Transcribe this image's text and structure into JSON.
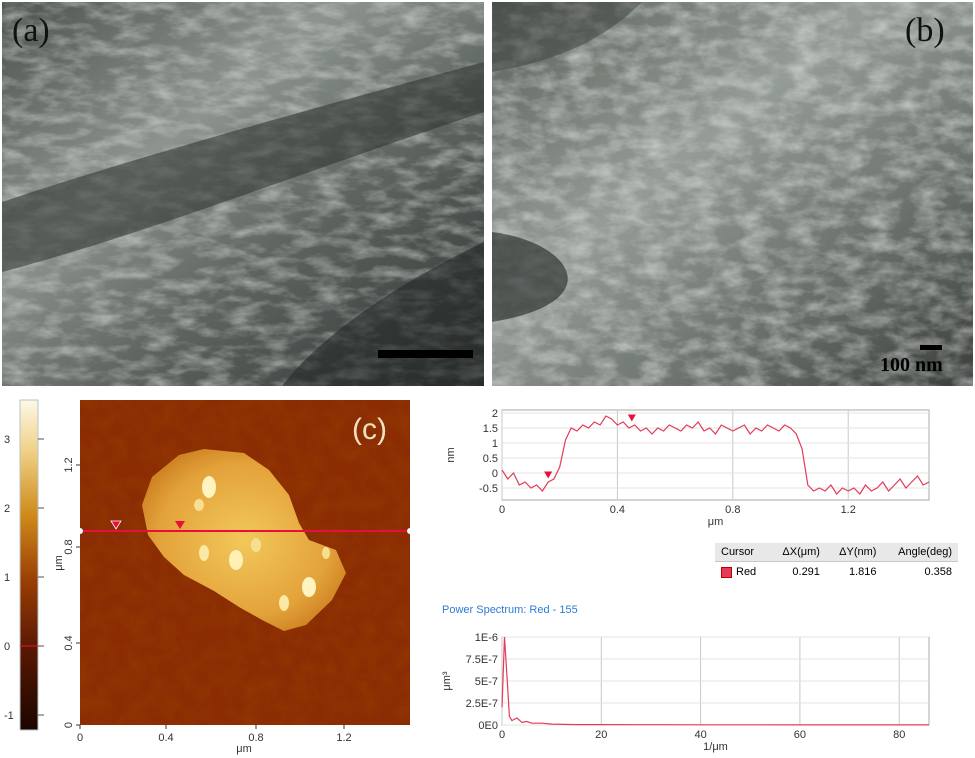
{
  "figure": {
    "panel_a_label": "(a)",
    "panel_b_label": "(b)",
    "panel_c_label": "(c)",
    "scale_bar_label": "100 nm"
  },
  "afm_image": {
    "colorbar_ticks": [
      "3",
      "2",
      "1",
      "0",
      "-1"
    ],
    "y_ticks": [
      "1.2",
      "0.8",
      "0.4",
      "0"
    ],
    "x_ticks": [
      "0",
      "0.4",
      "0.8",
      "1.2"
    ],
    "ylabel": "μm",
    "xlabel": "μm",
    "colors": {
      "low": "#3a0a02",
      "mid": "#8b2c03",
      "high": "#f2dc8a",
      "cursor_line": "#e8103a"
    }
  },
  "chart_data": [
    {
      "type": "line",
      "title": "",
      "xlabel": "μm",
      "ylabel": "nm",
      "xlim": [
        0,
        1.48
      ],
      "ylim": [
        -0.9,
        2.1
      ],
      "x_ticks": [
        "0",
        "0.4",
        "0.8",
        "1.2"
      ],
      "y_ticks": [
        "2",
        "1.5",
        "1",
        "0.5",
        "0",
        "-0.5"
      ],
      "series": [
        {
          "color": "#e23c5a",
          "x": [
            0.0,
            0.02,
            0.04,
            0.06,
            0.08,
            0.1,
            0.12,
            0.14,
            0.16,
            0.18,
            0.2,
            0.22,
            0.24,
            0.26,
            0.28,
            0.3,
            0.32,
            0.34,
            0.36,
            0.38,
            0.4,
            0.42,
            0.44,
            0.46,
            0.48,
            0.5,
            0.52,
            0.54,
            0.56,
            0.58,
            0.6,
            0.62,
            0.64,
            0.66,
            0.68,
            0.7,
            0.72,
            0.74,
            0.76,
            0.78,
            0.8,
            0.82,
            0.84,
            0.86,
            0.88,
            0.9,
            0.92,
            0.94,
            0.96,
            0.98,
            1.0,
            1.02,
            1.04,
            1.06,
            1.08,
            1.1,
            1.12,
            1.14,
            1.16,
            1.18,
            1.2,
            1.22,
            1.24,
            1.26,
            1.28,
            1.3,
            1.32,
            1.34,
            1.36,
            1.38,
            1.4,
            1.42,
            1.44,
            1.46,
            1.48
          ],
          "y": [
            0.1,
            -0.2,
            0.0,
            -0.4,
            -0.3,
            -0.5,
            -0.4,
            -0.6,
            -0.3,
            -0.2,
            0.2,
            1.1,
            1.5,
            1.4,
            1.6,
            1.5,
            1.7,
            1.6,
            1.9,
            1.8,
            1.6,
            1.7,
            1.5,
            1.6,
            1.4,
            1.5,
            1.3,
            1.5,
            1.4,
            1.6,
            1.5,
            1.4,
            1.6,
            1.5,
            1.7,
            1.4,
            1.5,
            1.3,
            1.6,
            1.5,
            1.4,
            1.5,
            1.6,
            1.3,
            1.5,
            1.4,
            1.6,
            1.5,
            1.4,
            1.6,
            1.5,
            1.3,
            0.8,
            -0.4,
            -0.6,
            -0.5,
            -0.6,
            -0.4,
            -0.7,
            -0.5,
            -0.6,
            -0.5,
            -0.7,
            -0.4,
            -0.6,
            -0.5,
            -0.3,
            -0.6,
            -0.4,
            -0.2,
            -0.5,
            -0.3,
            -0.1,
            -0.4,
            -0.3
          ]
        }
      ],
      "markers": [
        {
          "x": 0.16,
          "y": -0.15
        },
        {
          "x": 0.45,
          "y": 1.75
        }
      ]
    },
    {
      "type": "line",
      "title": "Power Spectrum: Red  -  155",
      "xlabel": "1/μm",
      "ylabel": "μm³",
      "xlim": [
        0,
        86
      ],
      "ylim": [
        0,
        1e-06
      ],
      "x_ticks": [
        "0",
        "20",
        "40",
        "60",
        "80"
      ],
      "y_ticks": [
        "1E-6",
        "7.5E-7",
        "5E-7",
        "2.5E-7",
        "0E0"
      ],
      "series": [
        {
          "color": "#e23c5a",
          "x": [
            0,
            0.5,
            1,
            1.5,
            2,
            3,
            4,
            5,
            6,
            8,
            10,
            15,
            20,
            30,
            40,
            50,
            60,
            70,
            80,
            86
          ],
          "y": [
            2e-07,
            1e-06,
            5.5e-07,
            1e-07,
            5e-08,
            8e-08,
            3e-08,
            4e-08,
            2e-08,
            2e-08,
            1e-08,
            5e-09,
            4e-09,
            3e-09,
            2e-09,
            2e-09,
            1e-09,
            1e-09,
            1e-09,
            1e-09
          ]
        }
      ]
    }
  ],
  "cursor_table": {
    "headers": [
      "Cursor",
      "ΔX(μm)",
      "ΔY(nm)",
      "Angle(deg)"
    ],
    "row": {
      "name": "Red",
      "dx": "0.291",
      "dy": "1.816",
      "angle": "0.358"
    }
  }
}
